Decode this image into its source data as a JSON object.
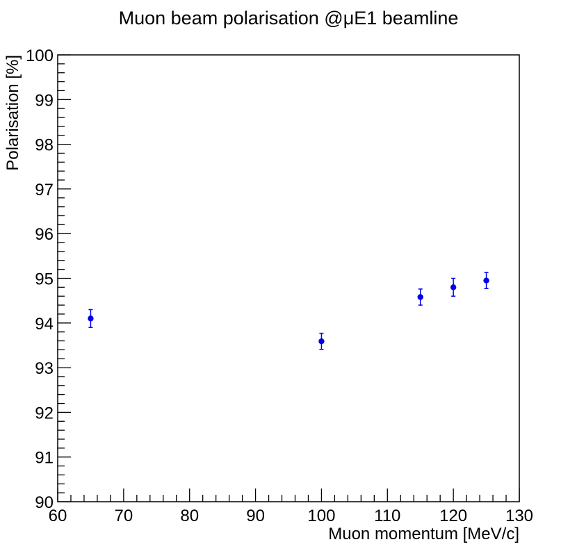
{
  "chart_data": {
    "type": "scatter",
    "title": "Muon beam polarisation @μE1 beamline",
    "xlabel": "Muon momentum [MeV/c]",
    "ylabel": "Polarisation [%]",
    "xlim": [
      60,
      130
    ],
    "ylim": [
      90,
      100
    ],
    "x_ticks": [
      "60",
      "70",
      "80",
      "90",
      "100",
      "110",
      "120",
      "130"
    ],
    "y_ticks": [
      "90",
      "91",
      "92",
      "93",
      "94",
      "95",
      "96",
      "97",
      "98",
      "99",
      "100"
    ],
    "grid": false,
    "marker_color": "#0000ee",
    "series": [
      {
        "points": [
          {
            "x": 65,
            "y": 94.1,
            "yerr": 0.2
          },
          {
            "x": 100,
            "y": 93.59,
            "yerr": 0.18
          },
          {
            "x": 115,
            "y": 94.58,
            "yerr": 0.18
          },
          {
            "x": 120,
            "y": 94.8,
            "yerr": 0.2
          },
          {
            "x": 125,
            "y": 94.95,
            "yerr": 0.18
          }
        ]
      }
    ]
  }
}
